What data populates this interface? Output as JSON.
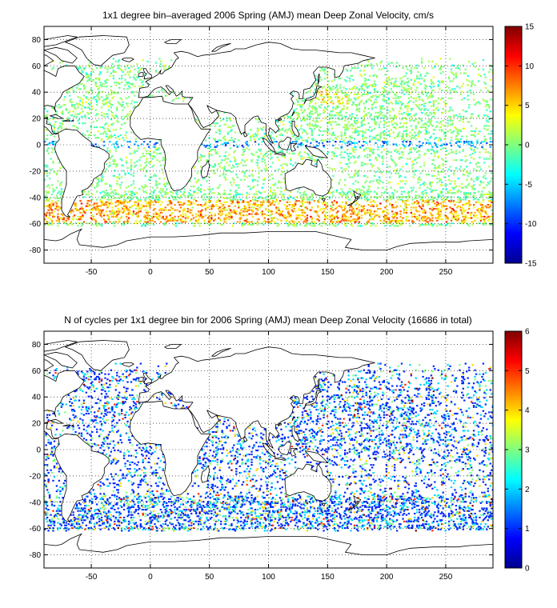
{
  "chart_data": [
    {
      "type": "heatmap",
      "title": "1x1 degree bin–averaged 2006 Spring (AMJ) mean Deep Zonal Velocity, cm/s",
      "x_ticks": [
        -50,
        0,
        50,
        100,
        150,
        200,
        250
      ],
      "y_ticks": [
        -80,
        -60,
        -40,
        -20,
        0,
        20,
        40,
        60,
        80
      ],
      "xlim": [
        -90,
        290
      ],
      "ylim": [
        -90,
        90
      ],
      "grid": true,
      "colorbar": {
        "range": [
          -15,
          15
        ],
        "ticks": [
          -15,
          -10,
          -5,
          0,
          5,
          10,
          15
        ],
        "colormap": "jet",
        "placement": "right"
      }
    },
    {
      "type": "heatmap",
      "title": "N of cycles per 1x1 degree bin for 2006 Spring (AMJ) mean Deep Zonal Velocity (16686 in total)",
      "x_ticks": [
        -50,
        0,
        50,
        100,
        150,
        200,
        250
      ],
      "y_ticks": [
        -80,
        -60,
        -40,
        -20,
        0,
        20,
        40,
        60,
        80
      ],
      "xlim": [
        -90,
        290
      ],
      "ylim": [
        -90,
        90
      ],
      "grid": true,
      "colorbar": {
        "range": [
          0,
          6
        ],
        "ticks": [
          0,
          1,
          2,
          3,
          4,
          5,
          6
        ],
        "colormap": "jet",
        "placement": "right"
      }
    }
  ],
  "colors": {
    "jet_stops": [
      "#00008f",
      "#0000ff",
      "#00ffff",
      "#ffff00",
      "#ff0000",
      "#800000"
    ],
    "axis": "#000000",
    "grid": "#000000",
    "land_fill": "#ffffff",
    "coast": "#000000"
  }
}
